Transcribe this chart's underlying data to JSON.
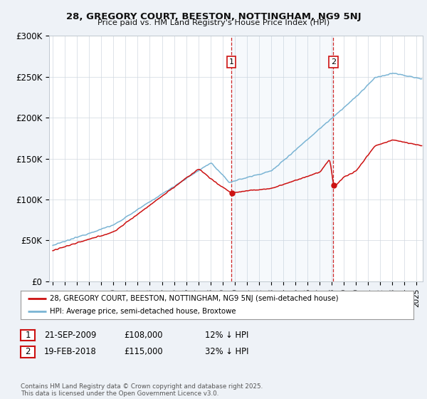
{
  "title_line1": "28, GREGORY COURT, BEESTON, NOTTINGHAM, NG9 5NJ",
  "title_line2": "Price paid vs. HM Land Registry's House Price Index (HPI)",
  "ylim": [
    0,
    300000
  ],
  "yticks": [
    0,
    50000,
    100000,
    150000,
    200000,
    250000,
    300000
  ],
  "ytick_labels": [
    "£0",
    "£50K",
    "£100K",
    "£150K",
    "£200K",
    "£250K",
    "£300K"
  ],
  "background_color": "#eef2f7",
  "plot_bg_color": "#ffffff",
  "hpi_color": "#7ab4d4",
  "price_color": "#cc1111",
  "marker1_x": 2009.72,
  "marker2_x": 2018.13,
  "legend_price_label": "28, GREGORY COURT, BEESTON, NOTTINGHAM, NG9 5NJ (semi-detached house)",
  "legend_hpi_label": "HPI: Average price, semi-detached house, Broxtowe",
  "copyright_text": "Contains HM Land Registry data © Crown copyright and database right 2025.\nThis data is licensed under the Open Government Licence v3.0.",
  "xtick_start": 1995,
  "xtick_end": 2025
}
